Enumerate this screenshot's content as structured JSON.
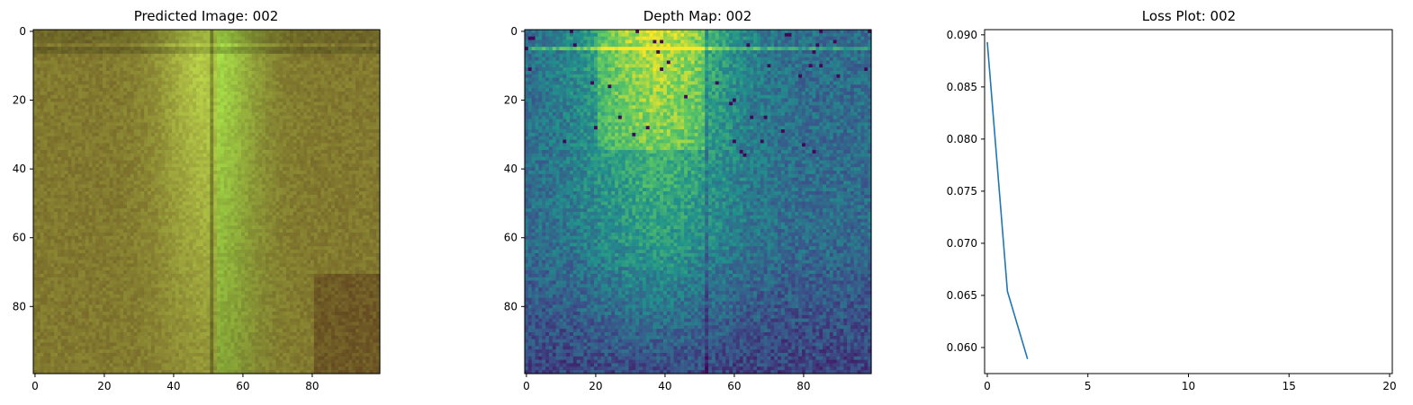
{
  "figure": {
    "panels": [
      {
        "title": "Predicted Image: 002"
      },
      {
        "title": "Depth Map: 002"
      },
      {
        "title": "Loss Plot: 002"
      }
    ]
  },
  "chart_data": [
    {
      "type": "heatmap",
      "title": "Predicted Image: 002",
      "image_size": [
        100,
        100
      ],
      "colormap": "rgb",
      "xticks": [
        0,
        20,
        40,
        60,
        80
      ],
      "yticks": [
        0,
        20,
        40,
        60,
        80
      ],
      "description_colors": {
        "edge": "#6a4a22",
        "center": "#c9dc66",
        "dark_corner": "#3a2a10"
      },
      "seam_column": 51
    },
    {
      "type": "heatmap",
      "title": "Depth Map: 002",
      "image_size": [
        100,
        100
      ],
      "colormap": "viridis",
      "xticks": [
        0,
        20,
        40,
        60,
        80
      ],
      "yticks": [
        0,
        20,
        40,
        60,
        80
      ],
      "seam_column": 52,
      "bright_row": 5
    },
    {
      "type": "line",
      "title": "Loss Plot: 002",
      "xlim": [
        0,
        20
      ],
      "ylim": [
        0.0575,
        0.0905
      ],
      "xticks": [
        0,
        5,
        10,
        15,
        20
      ],
      "yticks": [
        0.06,
        0.065,
        0.07,
        0.075,
        0.08,
        0.085,
        0.09
      ],
      "ytick_labels": [
        "0.060",
        "0.065",
        "0.070",
        "0.075",
        "0.080",
        "0.085",
        "0.090"
      ],
      "series": [
        {
          "x": [
            0,
            1,
            2
          ],
          "y": [
            0.0893,
            0.0654,
            0.0589
          ],
          "color": "#1f77b4"
        }
      ]
    }
  ]
}
